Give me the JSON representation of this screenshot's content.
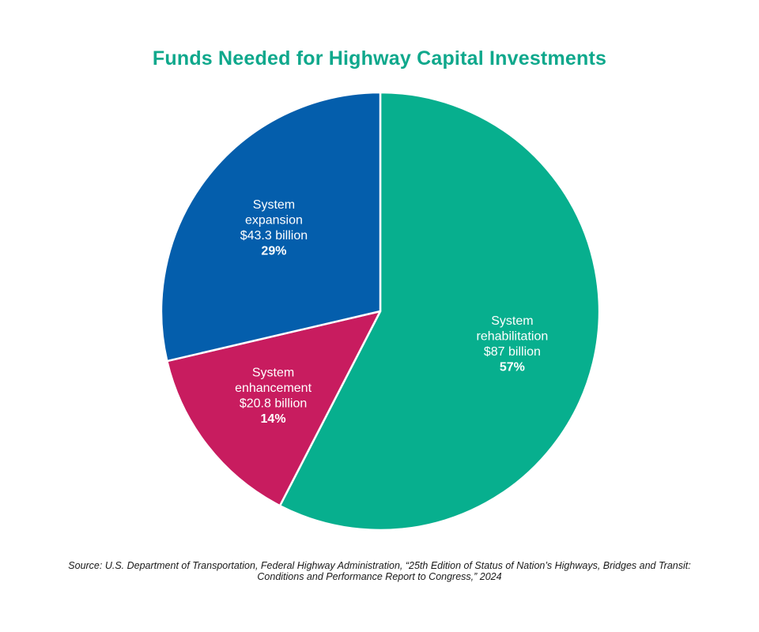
{
  "chart_data": {
    "type": "pie",
    "title": "Funds Needed for Highway Capital Investments",
    "slices": [
      {
        "label_lines": [
          "System",
          "rehabilitation"
        ],
        "amount_text": "$87 billion",
        "value": 87,
        "unit": "billion",
        "percent_text": "57%",
        "percent": 57,
        "color": "#07AF8E"
      },
      {
        "label_lines": [
          "System",
          "enhancement"
        ],
        "amount_text": "$20.8 billion",
        "value": 20.8,
        "unit": "billion",
        "percent_text": "14%",
        "percent": 14,
        "color": "#C81C5F"
      },
      {
        "label_lines": [
          "System",
          "expansion"
        ],
        "amount_text": "$43.3 billion",
        "value": 43.3,
        "unit": "billion",
        "percent_text": "29%",
        "percent": 29,
        "color": "#045EAC"
      }
    ],
    "start_angle": "12 o'clock",
    "direction": "clockwise",
    "legend": "none",
    "label_placement": "inside slices"
  },
  "colors": {
    "title": "#0FA88C",
    "slice_border": "#ffffff",
    "slice_label": "#ffffff",
    "source_text": "#1a1a1a"
  },
  "source": {
    "line1": "Source: U.S. Department of Transportation, Federal Highway Administration, “25th Edition of Status of Nation’s Highways, Bridges and Transit:",
    "line2": "Conditions and Performance Report to Congress,” 2024"
  }
}
